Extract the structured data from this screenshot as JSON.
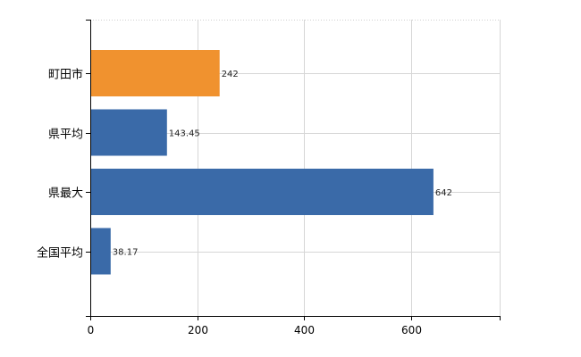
{
  "chart_data": {
    "type": "bar",
    "orientation": "horizontal",
    "title": "",
    "xlabel": "",
    "ylabel": "",
    "categories": [
      "町田市",
      "県平均",
      "県最大",
      "全国平均"
    ],
    "values": [
      242,
      143.45,
      642,
      38.17
    ],
    "value_labels": [
      "242",
      "143.45",
      "642",
      "38.17"
    ],
    "bar_colors": [
      "#f0922f",
      "#3a6aa8",
      "#3a6aa8",
      "#3a6aa8"
    ],
    "xlim": [
      0,
      766
    ],
    "xticks": [
      0,
      200,
      400,
      600
    ],
    "xtick_labels": [
      "0",
      "200",
      "400",
      "600"
    ],
    "grid": true,
    "legend": "none"
  }
}
